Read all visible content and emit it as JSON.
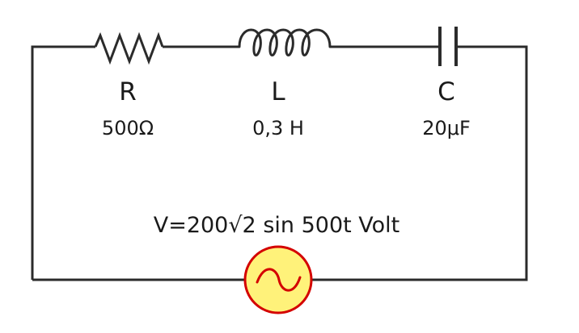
{
  "components": {
    "resistor": {
      "symbol": "R",
      "value": "500Ω"
    },
    "inductor": {
      "symbol": "L",
      "value": "0,3 H"
    },
    "capacitor": {
      "symbol": "C",
      "value": "20μF"
    }
  },
  "source": {
    "equation": "V=200√2 sin 500t Volt",
    "icon": "ac-source-icon"
  },
  "colors": {
    "wire": "#2b2b2b",
    "source_fill": "#fff27a",
    "source_stroke": "#d40000",
    "text": "#1a1a1a"
  }
}
